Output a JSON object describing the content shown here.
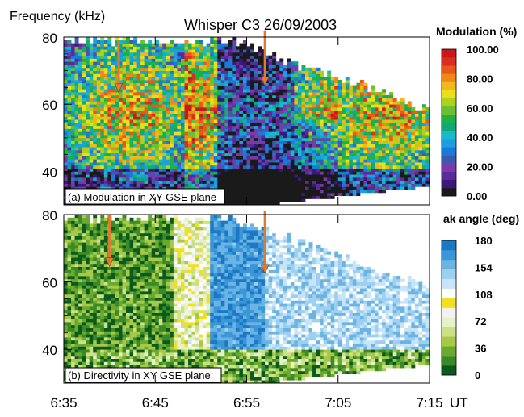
{
  "chart_data": [
    {
      "type": "heatmap",
      "panel_label": "(a) Modulation in XY GSE plane",
      "ylim": [
        30,
        80
      ],
      "yticks": [
        "40",
        "60",
        "80"
      ],
      "xlim": [
        "6:35",
        "7:15"
      ],
      "colorbar": {
        "title": "Modulation (%)",
        "ticks": [
          "100.00",
          "80.00",
          "60.00",
          "40.00",
          "20.00",
          "0.00"
        ],
        "colors": [
          "#1a1a1a",
          "#3a1a78",
          "#5a2a98",
          "#7a3aa8",
          "#3a5ab0",
          "#1a7ad8",
          "#1aa0e0",
          "#1ab8c8",
          "#10a878",
          "#20b048",
          "#6ac030",
          "#b0d020",
          "#e8e018",
          "#f0b818",
          "#f08818",
          "#e85818",
          "#d83020",
          "#c81818"
        ]
      },
      "annotations": [
        {
          "kind": "arrow",
          "x": "6:41",
          "y_from": 79,
          "y_to": 64
        },
        {
          "kind": "arrow",
          "x": "6:57",
          "y_from": 82,
          "y_to": 66
        }
      ]
    },
    {
      "type": "heatmap",
      "panel_label": "(b) Directivity in XY GSE plane",
      "ylim": [
        30,
        80
      ],
      "yticks": [
        "40",
        "60",
        "80"
      ],
      "xlim": [
        "6:35",
        "7:15"
      ],
      "colorbar": {
        "title": "ak angle (deg)",
        "ticks": [
          "180",
          "154",
          "108",
          "72",
          "36",
          "0"
        ],
        "colors": [
          "#0a5a20",
          "#3a8a28",
          "#6aaa30",
          "#a8c848",
          "#cce088",
          "#e8f0c8",
          "#f2f2f2",
          "#f0e020",
          "#ffffff",
          "#c8e4f8",
          "#9ccff0",
          "#6ab4e4",
          "#3a96d6",
          "#1a78c4"
        ]
      },
      "annotations": [
        {
          "kind": "arrow",
          "x": "6:40",
          "y_from": 80,
          "y_to": 65
        },
        {
          "kind": "arrow",
          "x": "6:57",
          "y_from": 81,
          "y_to": 63
        }
      ]
    }
  ],
  "title": "Whisper  C3  26/09/2003",
  "y_axis_title": "Frequency (kHz)",
  "x_axis": {
    "ticks": [
      "6:35",
      "6:45",
      "6:55",
      "7:05",
      "7:15"
    ],
    "unit": "UT"
  }
}
